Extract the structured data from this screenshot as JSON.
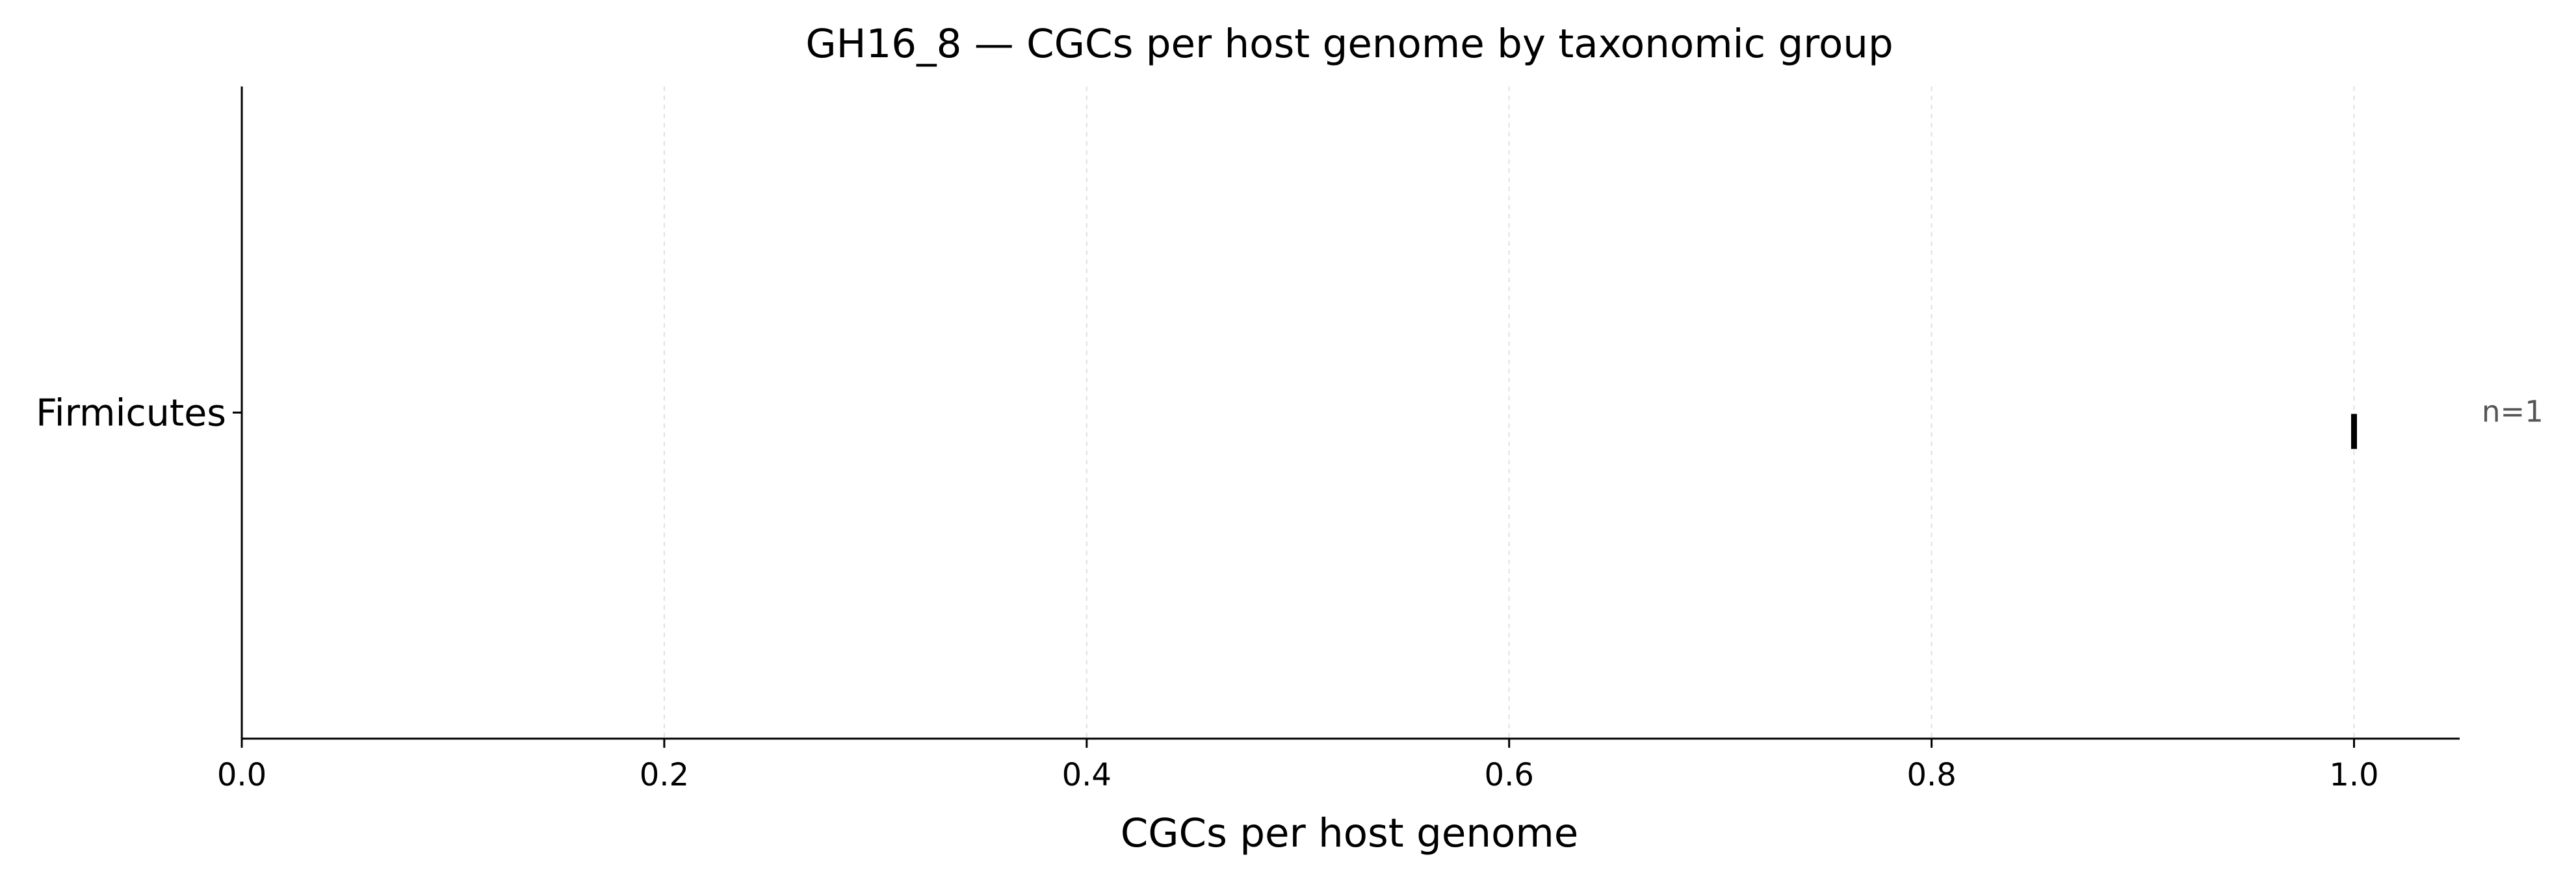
{
  "chart_data": {
    "type": "scatter",
    "title": "GH16_8 — CGCs per host genome by taxonomic group",
    "xlabel": "CGCs per host genome",
    "ylabel": "",
    "xlim": [
      0,
      1.05
    ],
    "xticks": [
      0.0,
      0.2,
      0.4,
      0.6,
      0.8,
      1.0
    ],
    "xtick_labels": [
      "0.0",
      "0.2",
      "0.4",
      "0.6",
      "0.8",
      "1.0"
    ],
    "x_grid": true,
    "categories": [
      "Firmicutes"
    ],
    "points": [
      {
        "category": "Firmicutes",
        "x": 1.0,
        "marker": "vertical-line"
      }
    ],
    "annotations": [
      {
        "category": "Firmicutes",
        "text": "n=1"
      }
    ],
    "colors": {
      "marker": "#000000",
      "axis": "#000000",
      "grid": "#e0e0e0",
      "annotation": "#555555"
    }
  }
}
